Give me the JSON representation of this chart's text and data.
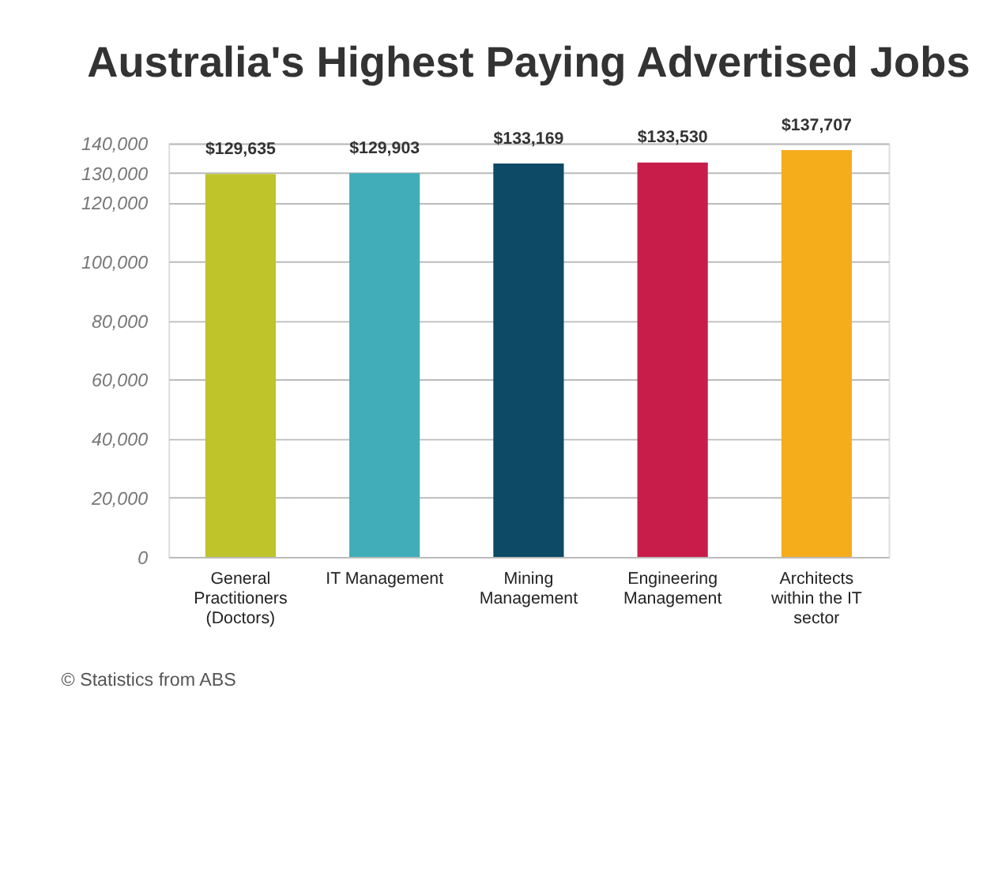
{
  "chart_data": {
    "type": "bar",
    "title": "Australia's Highest Paying Advertised Jobs",
    "categories": [
      "General Practitioners (Doctors)",
      "IT Management",
      "Mining Management",
      "Engineering Management",
      "Architects within the IT sector"
    ],
    "values": [
      129635,
      129903,
      133169,
      133530,
      137707
    ],
    "colors": [
      "#bfc42a",
      "#41adb8",
      "#0c4a66",
      "#c81d4a",
      "#f5ad1b"
    ],
    "value_labels": [
      "$129,635",
      "$129,903",
      "$133,169",
      "$133,530",
      "$137,707"
    ],
    "ylim": [
      0,
      140000
    ],
    "yticks": [
      {
        "value": 0,
        "label": "0"
      },
      {
        "value": 20000,
        "label": "20,000"
      },
      {
        "value": 40000,
        "label": "40,000"
      },
      {
        "value": 60000,
        "label": "60,000"
      },
      {
        "value": 80000,
        "label": "80,000"
      },
      {
        "value": 100000,
        "label": "100,000"
      },
      {
        "value": 120000,
        "label": "120,000"
      },
      {
        "value": 130000,
        "label": "130,000"
      },
      {
        "value": 140000,
        "label": "140,000"
      }
    ],
    "grid": "y",
    "annotations": [
      "© Statistics from ABS"
    ]
  }
}
